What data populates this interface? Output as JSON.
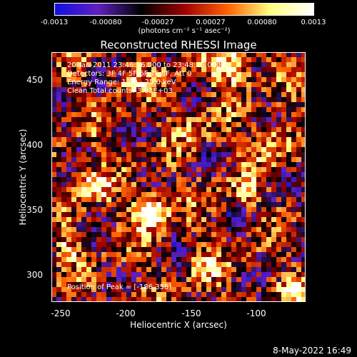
{
  "colorbar": {
    "ticks": [
      "-0.0013",
      "-0.00080",
      "-0.00027",
      "0.00027",
      "0.00080",
      "0.0013"
    ],
    "unit": "(photons cm⁻² s⁻¹ asec⁻²)",
    "colors": [
      "#1010e0",
      "#6020c0",
      "#000000",
      "#a00000",
      "#ff6000",
      "#ffff80",
      "#ffffff"
    ]
  },
  "title": "Reconstructed RHESSI Image",
  "info": {
    "line1": "20-Jan-2011 23:46:56.000 to 23:48:16.000",
    "line2": "Detectors: 3F 4F 5F 6F 7F 8F, Att 0",
    "line3": "Energy Range: 12.0 - 25.0 keV",
    "line4": "Clean     Total counts: 3.63E+03"
  },
  "peak": "Position of Peak = [-186,358]",
  "axes": {
    "xlabel": "Heliocentric X (arcsec)",
    "ylabel": "Heliocentric Y (arcsec)",
    "xticks": [
      "-250",
      "-200",
      "-150",
      "-100"
    ],
    "yticks": [
      "450",
      "400",
      "350",
      "300"
    ]
  },
  "footer": "8-May-2022 16:49",
  "chart_data": {
    "type": "heatmap",
    "title": "Reconstructed RHESSI Image",
    "xlabel": "Heliocentric X (arcsec)",
    "ylabel": "Heliocentric Y (arcsec)",
    "xlim": [
      -253,
      -63
    ],
    "ylim": [
      278,
      470
    ],
    "zlim": [
      -0.0013,
      0.0013
    ],
    "peak": [
      -186,
      358
    ]
  }
}
